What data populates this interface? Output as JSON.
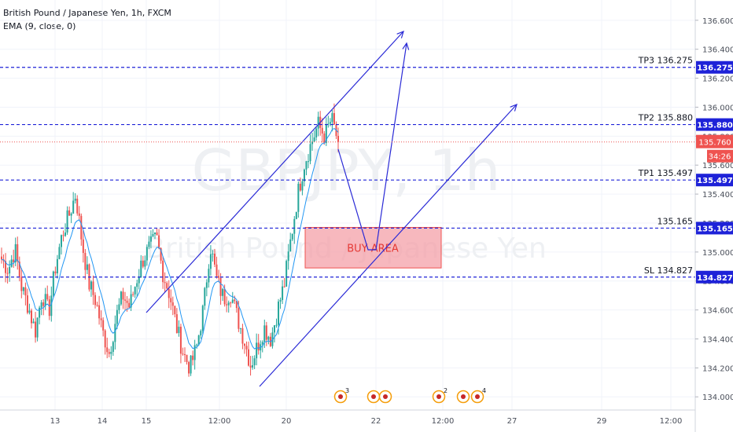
{
  "header": {
    "title": "British Pound / Japanese Yen, 1h, FXCM",
    "indicator": "EMA (9, close, 0)"
  },
  "watermark": {
    "symbol": "GBPJPY, 1h",
    "name": "British Pound / Japanese Yen"
  },
  "colors": {
    "up": "#26a69a",
    "down": "#ef5350",
    "ema": "#2196f3",
    "drawing": "#2a2ad6",
    "label_bg": "#1e22d8",
    "last_price": "#ef5350",
    "zone_fill": "#f4a0a8",
    "zone_border": "#ef5350"
  },
  "chart_data": {
    "type": "candlestick",
    "title": "British Pound / Japanese Yen, 1h, FXCM",
    "ylim": [
      133.92,
      136.74
    ],
    "y_ticks": [
      134.0,
      134.2,
      134.4,
      134.6,
      134.8,
      135.0,
      135.2,
      135.4,
      135.6,
      135.8,
      136.0,
      136.2,
      136.4,
      136.6
    ],
    "y_tick_labels": [
      "134.000",
      "134.200",
      "134.400",
      "134.600",
      "134.800",
      "135.000",
      "135.200",
      "135.400",
      "135.600",
      "135.800",
      "136.000",
      "136.200",
      "136.400",
      "136.600"
    ],
    "x_tick_labels": [
      "13",
      "14",
      "15",
      "12:00",
      "20",
      "22",
      "12:00",
      "27",
      "29",
      "12:00"
    ],
    "last_price": 135.76,
    "countdown": "34:26",
    "close_path": [
      134.95,
      134.88,
      135.02,
      134.75,
      134.62,
      134.45,
      134.72,
      134.58,
      134.9,
      135.12,
      135.25,
      135.4,
      135.05,
      134.78,
      134.66,
      134.45,
      134.3,
      134.55,
      134.7,
      134.62,
      134.8,
      134.95,
      135.03,
      135.1,
      134.85,
      134.7,
      134.48,
      134.3,
      134.2,
      134.35,
      134.62,
      135.05,
      134.8,
      134.68,
      134.72,
      134.55,
      134.4,
      134.22,
      134.35,
      134.48,
      134.4,
      134.6,
      134.78,
      135.1,
      135.4,
      135.62,
      135.75,
      135.88,
      135.8,
      135.92,
      135.76
    ],
    "levels": [
      {
        "name": "TP3",
        "label": "TP3 136.275",
        "value": 136.275,
        "tag": "136.275"
      },
      {
        "name": "TP2",
        "label": "TP2 135.880",
        "value": 135.88,
        "tag": "135.880"
      },
      {
        "name": "TP1",
        "label": "TP1 135.497",
        "value": 135.497,
        "tag": "135.497"
      },
      {
        "name": "zone-top",
        "label": "135.165",
        "value": 135.165,
        "tag": "135.165"
      },
      {
        "name": "SL",
        "label": "SL 134.827",
        "value": 134.827,
        "tag": "134.827"
      }
    ],
    "buy_zone": {
      "label": "BUY AREA",
      "top": 135.17,
      "bottom": 134.89
    },
    "event_badges": [
      "3",
      "2",
      "4"
    ]
  }
}
